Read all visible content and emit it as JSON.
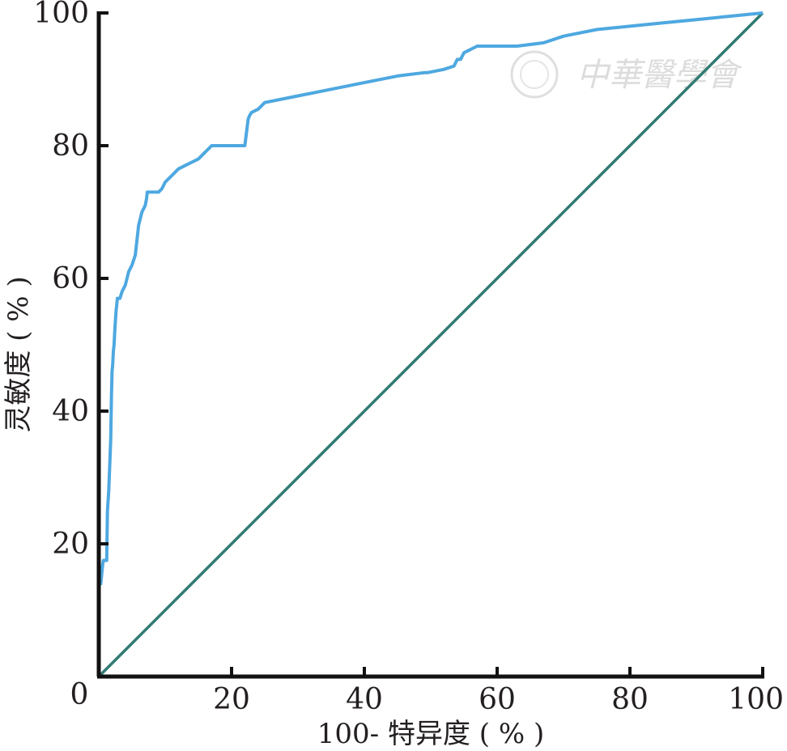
{
  "chart_data": {
    "type": "line",
    "xlabel": "100- 特异度 ( % )",
    "ylabel": "灵敏度 ( % )",
    "xlim": [
      0,
      100
    ],
    "ylim": [
      0,
      100
    ],
    "x_ticks": [
      "0",
      "20",
      "40",
      "60",
      "80",
      "100"
    ],
    "y_ticks": [
      "20",
      "40",
      "60",
      "80",
      "100"
    ],
    "grid": false,
    "legend": "none",
    "watermark": "中華醫學會",
    "colors": {
      "roc": "#4ea8e0",
      "reference": "#2f7b72",
      "axis": "#111111"
    },
    "series": [
      {
        "x": [
          0,
          0,
          0.3,
          0.6,
          0.7,
          1.2,
          1.3,
          1.5,
          1.7,
          1.8,
          1.9,
          2.0,
          2.1,
          2.2,
          2.3,
          2.4,
          2.6,
          2.8,
          3.0,
          3.2,
          3.5,
          4.0,
          4.5,
          5.0,
          5.5,
          6.0,
          6.5,
          7.0,
          7.2,
          7.3,
          7.5,
          8.0,
          8.5,
          9.0,
          9.5,
          10.0,
          11.0,
          11.5,
          12.0,
          13.0,
          14.0,
          15.0,
          16.0,
          17.0,
          18.0,
          19.0,
          20.0,
          21.0,
          22.0,
          22.5,
          22.7,
          23.0,
          24.0,
          25.0,
          30.0,
          35.0,
          40.0,
          45.0,
          49.0,
          49.5,
          52.0,
          53.5,
          54.0,
          54.5,
          55.0,
          57.0,
          58.0,
          60.0,
          63.0,
          67.0,
          70.0,
          75.0,
          80.0,
          85.0,
          90.0,
          95.0,
          100.0
        ],
        "y": [
          0,
          14,
          14,
          17,
          17.5,
          17.5,
          25,
          28,
          33,
          36,
          42,
          46,
          47,
          49,
          50,
          52,
          55,
          57,
          57,
          57,
          58,
          59,
          61,
          62,
          63.5,
          68,
          70,
          71,
          72,
          73,
          73,
          73,
          73,
          73,
          73.5,
          74.5,
          75.5,
          76,
          76.5,
          77,
          77.5,
          78,
          79,
          80,
          80,
          80,
          80,
          80,
          80,
          84,
          84.5,
          85,
          85.5,
          86.5,
          87.5,
          88.5,
          89.5,
          90.5,
          91,
          91,
          91.5,
          92,
          93,
          93,
          94,
          95,
          95,
          95,
          95,
          95.5,
          96.5,
          97.5,
          98,
          98.5,
          99,
          99.5,
          100
        ]
      },
      {
        "x": [
          0,
          100
        ],
        "y": [
          0,
          100
        ]
      }
    ]
  }
}
